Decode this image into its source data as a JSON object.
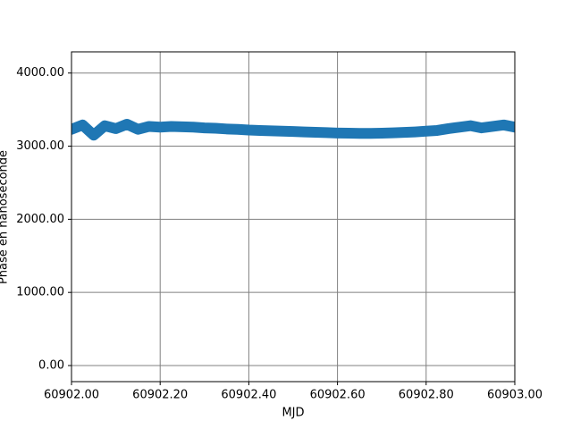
{
  "chart_data": {
    "type": "line",
    "xlabel": "MJD",
    "ylabel": "Phase en nanoseconde",
    "x": [
      60902.0,
      60902.025,
      60902.05,
      60902.075,
      60902.1,
      60902.125,
      60902.15,
      60902.175,
      60902.2,
      60902.225,
      60902.25,
      60902.275,
      60902.3,
      60902.325,
      60902.35,
      60902.375,
      60902.4,
      60902.425,
      60902.45,
      60902.475,
      60902.5,
      60902.525,
      60902.55,
      60902.575,
      60902.6,
      60902.625,
      60902.65,
      60902.675,
      60902.7,
      60902.725,
      60902.75,
      60902.775,
      60902.8,
      60902.825,
      60902.85,
      60902.875,
      60902.9,
      60902.925,
      60902.95,
      60902.975,
      60903.0
    ],
    "series": [
      {
        "color": "#1f77b4",
        "values": [
          3230,
          3290,
          3150,
          3280,
          3240,
          3300,
          3230,
          3270,
          3260,
          3270,
          3265,
          3260,
          3250,
          3245,
          3235,
          3230,
          3220,
          3215,
          3210,
          3205,
          3200,
          3195,
          3190,
          3185,
          3180,
          3178,
          3175,
          3175,
          3178,
          3182,
          3188,
          3195,
          3205,
          3215,
          3240,
          3260,
          3280,
          3250,
          3270,
          3290,
          3260
        ]
      }
    ],
    "xlim": [
      60902.0,
      60903.0
    ],
    "xticks": [
      {
        "value": 60902.0,
        "label": "60902.00"
      },
      {
        "value": 60902.2,
        "label": "60902.20"
      },
      {
        "value": 60902.4,
        "label": "60902.40"
      },
      {
        "value": 60902.6,
        "label": "60902.60"
      },
      {
        "value": 60902.8,
        "label": "60902.80"
      },
      {
        "value": 60903.0,
        "label": "60903.00"
      }
    ],
    "ylim": [
      -220,
      4290
    ],
    "yticks": [
      {
        "value": 0,
        "label": "0.00"
      },
      {
        "value": 1000,
        "label": "1000.00"
      },
      {
        "value": 2000,
        "label": "2000.00"
      },
      {
        "value": 3000,
        "label": "3000.00"
      },
      {
        "value": 4000,
        "label": "4000.00"
      }
    ],
    "grid": true
  }
}
